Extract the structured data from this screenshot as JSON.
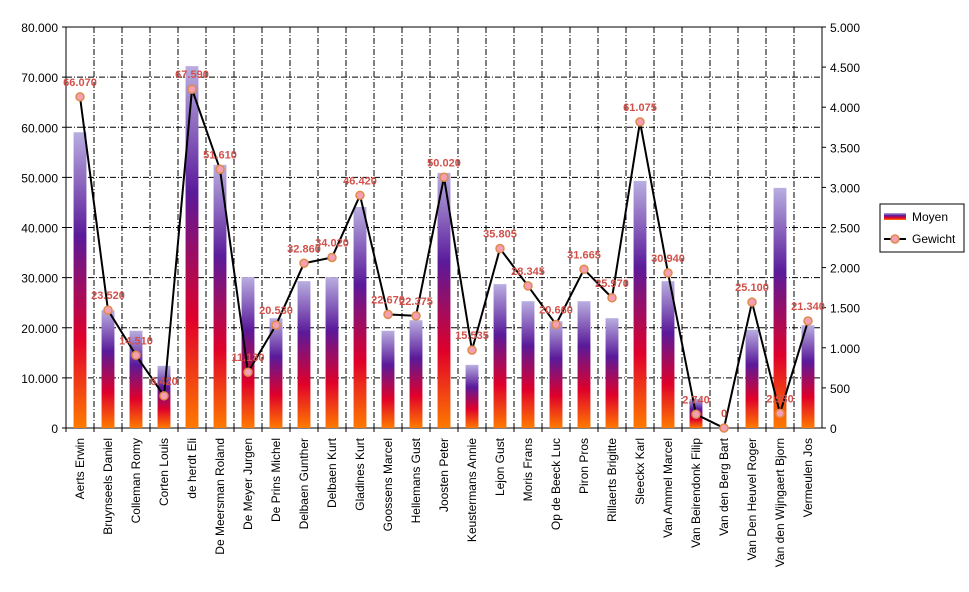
{
  "chart_data": {
    "type": "bar",
    "categories": [
      "Aerts Erwin",
      "Bruynseels Daniel",
      "Colleman Romy",
      "Corten Louis",
      "de herdt Eli",
      "De Meersman Roland",
      "De Meyer Jurgen",
      "De Prins Michel",
      "Delbaen Gunther",
      "Delbaen Kurt",
      "Gladines Kurt",
      "Goossens Marcel",
      "Hellemans Gust",
      "Joosten Peter",
      "Keustermans Annie",
      "Lejon Gust",
      "Moris Frans",
      "Op de Beeck Luc",
      "Piron Pros",
      "Rillaerts Brigitte",
      "Sleeckx Karl",
      "Van Ammel Marcel",
      "Van Beirendonk Filip",
      "Van den Berg Bart",
      "Van Den Heuvel Roger",
      "Van den Wijngaert Bjorn",
      "Vermeulen Jos"
    ],
    "series": [
      {
        "name": "Moyen",
        "type": "bar",
        "color": "#5a1a9a",
        "values": [
          59000,
          23500,
          19400,
          12400,
          72200,
          52500,
          30100,
          21900,
          29300,
          30100,
          44100,
          19400,
          21500,
          50900,
          12600,
          28700,
          25300,
          21300,
          25300,
          21900,
          49300,
          29300,
          5800,
          0,
          19600,
          47900,
          20500
        ]
      },
      {
        "name": "Gewicht",
        "type": "line",
        "color": "#000000",
        "values": [
          66070,
          23520,
          14510,
          6420,
          67590,
          51610,
          11130,
          20530,
          32860,
          34020,
          46420,
          22670,
          22375,
          50020,
          15535,
          35805,
          28345,
          20660,
          31665,
          25970,
          61075,
          30940,
          2740,
          0,
          25100,
          2930,
          21340
        ],
        "value_labels": [
          "66.070",
          "23.520",
          "14.510",
          "6.420",
          "67.590",
          "51.610",
          "11.130",
          "20.530",
          "32.860",
          "34.020",
          "46.420",
          "22.670",
          "22.375",
          "50.020",
          "15.535",
          "35.805",
          "28.345",
          "20.660",
          "31.665",
          "25.970",
          "61.075",
          "30.940",
          "2.740",
          "0",
          "25.100",
          "2.930",
          "21.340"
        ]
      }
    ],
    "ylim": [
      0,
      80000
    ],
    "yticks": [
      0,
      {
        "value": 10000,
        "label": "10.000"
      },
      {
        "value": 20000,
        "label": "20.000"
      },
      {
        "value": 30000,
        "label": "30.000"
      },
      {
        "value": 40000,
        "label": "40.000"
      },
      {
        "value": 50000,
        "label": "50.000"
      },
      {
        "value": 60000,
        "label": "60.000"
      },
      {
        "value": 70000,
        "label": "70.000"
      },
      {
        "value": 80000,
        "label": "80.000"
      }
    ],
    "y2lim": [
      0,
      5000
    ],
    "y2ticks": [
      0,
      500,
      {
        "value": 1000,
        "label": "1.000"
      },
      {
        "value": 1500,
        "label": "1.500"
      },
      {
        "value": 2000,
        "label": "2.000"
      },
      {
        "value": 2500,
        "label": "2.500"
      },
      {
        "value": 3000,
        "label": "3.000"
      },
      {
        "value": 3500,
        "label": "3.500"
      },
      {
        "value": 4000,
        "label": "4.000"
      },
      {
        "value": 4500,
        "label": "4.500"
      },
      {
        "value": 5000,
        "label": "5.000"
      }
    ],
    "grid": true,
    "legend": "right"
  }
}
